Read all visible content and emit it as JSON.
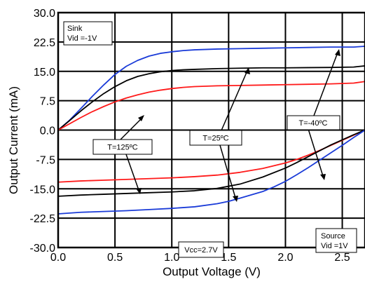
{
  "chart_data": {
    "type": "line",
    "title": "",
    "xlabel": "Output Voltage (V)",
    "ylabel": "Output Current (mA)",
    "xlim": [
      0,
      2.7
    ],
    "ylim": [
      -30,
      30
    ],
    "grid": true,
    "x_ticks": [
      0.0,
      0.5,
      1.0,
      1.5,
      2.0,
      2.5
    ],
    "x_tick_labels": [
      "0.0",
      "0.5",
      "1.0",
      "1.5",
      "2.0",
      "2.5"
    ],
    "y_ticks": [
      30,
      22.5,
      15,
      7.5,
      0,
      -7.5,
      -15,
      -22.5,
      -30
    ],
    "y_tick_labels": [
      "30.0",
      "22.5",
      "15.0",
      "7.5",
      "0.0",
      "-7.5",
      "-15.0",
      "-22.5",
      "-30.0"
    ],
    "series": [
      {
        "color": "#1a3bd8",
        "x": [
          0,
          0.1,
          0.2,
          0.3,
          0.4,
          0.5,
          0.6,
          0.7,
          0.8,
          0.9,
          1.0,
          1.1,
          1.2,
          1.4,
          1.6,
          1.8,
          2.0,
          2.2,
          2.4,
          2.6,
          2.7
        ],
        "y": [
          0,
          2.5,
          5.5,
          8.6,
          11.5,
          14.2,
          16.3,
          17.8,
          18.9,
          19.6,
          20.0,
          20.3,
          20.5,
          20.7,
          20.8,
          20.9,
          21.0,
          21.1,
          21.2,
          21.2,
          21.4
        ]
      },
      {
        "color": "#000000",
        "x": [
          0,
          0.1,
          0.2,
          0.3,
          0.4,
          0.5,
          0.6,
          0.7,
          0.8,
          0.9,
          1.0,
          1.1,
          1.2,
          1.4,
          1.6,
          1.8,
          2.0,
          2.2,
          2.4,
          2.6,
          2.7
        ],
        "y": [
          0,
          2.4,
          4.9,
          7.2,
          9.3,
          11.1,
          12.6,
          13.7,
          14.4,
          14.9,
          15.2,
          15.4,
          15.5,
          15.7,
          15.8,
          15.9,
          15.9,
          15.95,
          16.0,
          16.1,
          16.4
        ]
      },
      {
        "color": "#ff1a1a",
        "x": [
          0,
          0.1,
          0.2,
          0.3,
          0.4,
          0.5,
          0.6,
          0.7,
          0.8,
          0.9,
          1.0,
          1.1,
          1.2,
          1.4,
          1.6,
          1.8,
          2.0,
          2.2,
          2.4,
          2.6,
          2.7
        ],
        "y": [
          0,
          1.6,
          3.2,
          4.7,
          6.0,
          7.2,
          8.2,
          9.0,
          9.7,
          10.2,
          10.6,
          10.9,
          11.1,
          11.3,
          11.4,
          11.5,
          11.6,
          11.7,
          11.8,
          12.0,
          12.4
        ]
      },
      {
        "color": "#ff1a1a",
        "x": [
          0,
          0.2,
          0.4,
          0.6,
          0.8,
          1.0,
          1.2,
          1.4,
          1.6,
          1.8,
          2.0,
          2.1,
          2.2,
          2.3,
          2.4,
          2.5,
          2.6,
          2.7
        ],
        "y": [
          -13.3,
          -13.0,
          -12.8,
          -12.6,
          -12.4,
          -12.2,
          -11.9,
          -11.5,
          -10.8,
          -9.8,
          -8.4,
          -7.5,
          -6.4,
          -5.2,
          -3.9,
          -2.6,
          -1.3,
          0
        ]
      },
      {
        "color": "#000000",
        "x": [
          0,
          0.2,
          0.4,
          0.6,
          0.8,
          1.0,
          1.2,
          1.4,
          1.6,
          1.8,
          2.0,
          2.1,
          2.2,
          2.3,
          2.4,
          2.5,
          2.6,
          2.7
        ],
        "y": [
          -16.9,
          -16.6,
          -16.4,
          -16.2,
          -16.0,
          -15.8,
          -15.5,
          -14.9,
          -13.8,
          -12.0,
          -9.7,
          -8.3,
          -6.8,
          -5.3,
          -3.8,
          -2.5,
          -1.2,
          0
        ]
      },
      {
        "color": "#1a3bd8",
        "x": [
          0,
          0.2,
          0.4,
          0.6,
          0.8,
          1.0,
          1.2,
          1.4,
          1.5,
          1.6,
          1.8,
          1.9,
          2.0,
          2.1,
          2.2,
          2.3,
          2.4,
          2.5,
          2.6,
          2.7
        ],
        "y": [
          -21.4,
          -21.0,
          -20.8,
          -20.6,
          -20.3,
          -20.0,
          -19.6,
          -18.8,
          -18.2,
          -17.4,
          -15.7,
          -14.5,
          -13.1,
          -11.4,
          -9.6,
          -7.7,
          -5.8,
          -3.9,
          -1.9,
          0
        ]
      }
    ],
    "annotations": [
      {
        "text_lines": [
          "Sink",
          "Vid =-1V"
        ]
      },
      {
        "text_lines": [
          "Source",
          "Vid =1V"
        ]
      },
      {
        "text_lines": [
          "Vcc=2.7V"
        ]
      },
      {
        "text_lines": [
          "T=125ºC"
        ]
      },
      {
        "text_lines": [
          "T=25ºC"
        ]
      },
      {
        "text_lines": [
          "T=-40ºC"
        ]
      }
    ]
  }
}
